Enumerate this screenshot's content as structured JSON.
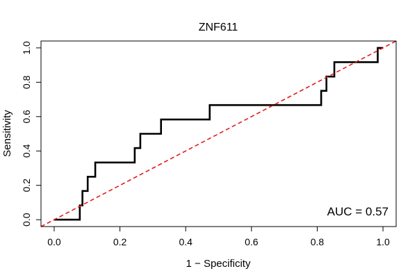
{
  "chart_data": {
    "type": "line",
    "title": "ZNF611",
    "xlabel": "1 − Specificity",
    "ylabel": "Sensitivity",
    "xlim": [
      -0.04,
      1.04
    ],
    "ylim": [
      -0.04,
      1.04
    ],
    "x_ticks": [
      0.0,
      0.2,
      0.4,
      0.6,
      0.8,
      1.0
    ],
    "y_ticks": [
      0.0,
      0.2,
      0.4,
      0.6,
      0.8,
      1.0
    ],
    "x_tick_labels": [
      "0.0",
      "0.2",
      "0.4",
      "0.6",
      "0.8",
      "1.0"
    ],
    "y_tick_labels": [
      "0.0",
      "0.2",
      "0.4",
      "0.6",
      "0.8",
      "1.0"
    ],
    "grid": false,
    "annotation": "AUC = 0.57",
    "series": [
      {
        "color": "#000000",
        "style": "solid",
        "x": [
          0.0,
          0.078,
          0.078,
          0.086,
          0.086,
          0.102,
          0.102,
          0.125,
          0.125,
          0.245,
          0.245,
          0.262,
          0.262,
          0.325,
          0.325,
          0.473,
          0.473,
          0.812,
          0.812,
          0.828,
          0.828,
          0.852,
          0.852,
          0.984,
          0.984,
          1.0
        ],
        "y": [
          0.0,
          0.0,
          0.083,
          0.083,
          0.167,
          0.167,
          0.25,
          0.25,
          0.333,
          0.333,
          0.417,
          0.417,
          0.5,
          0.5,
          0.583,
          0.583,
          0.667,
          0.667,
          0.75,
          0.75,
          0.833,
          0.833,
          0.917,
          0.917,
          1.0,
          1.0
        ]
      },
      {
        "color": "#e31a1c",
        "style": "dashed",
        "x": [
          -0.04,
          1.04
        ],
        "y": [
          -0.04,
          1.04
        ]
      }
    ]
  }
}
